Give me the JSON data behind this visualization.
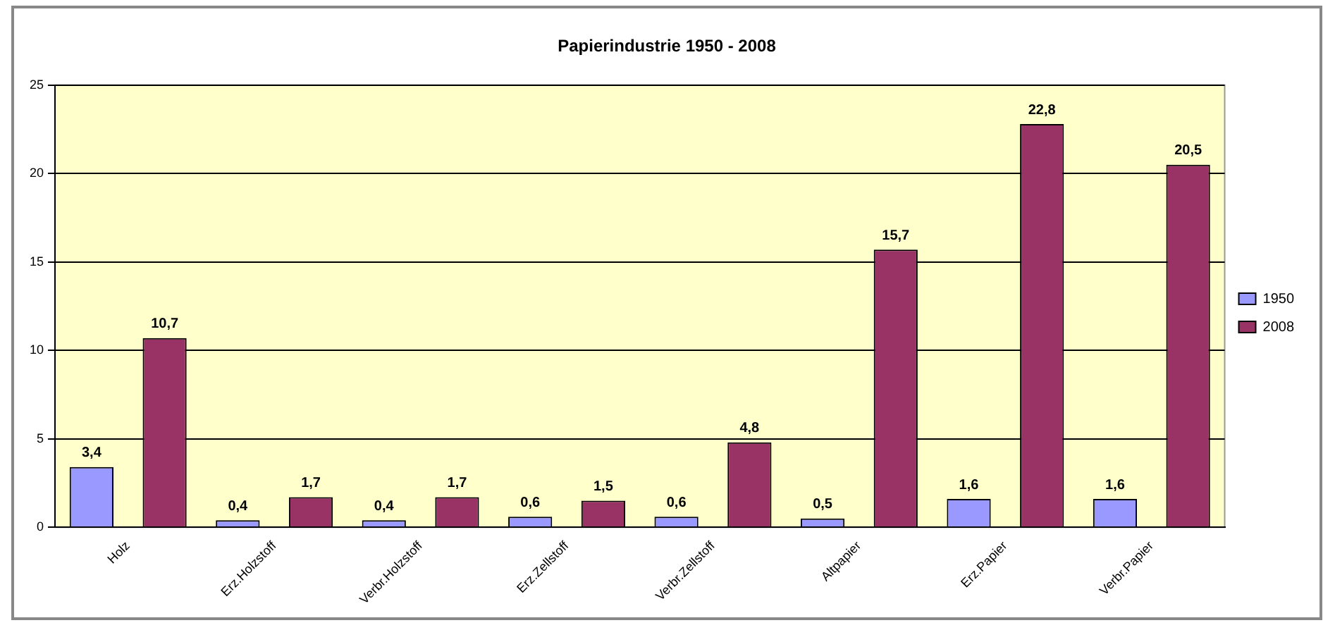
{
  "chart_data": {
    "type": "bar",
    "title": "Papierindustrie 1950 - 2008",
    "categories": [
      "Holz",
      "Erz.Holzstoff",
      "Verbr.Holzstoff",
      "Erz.Zellstoff",
      "Verbr.Zellstoff",
      "Altpapier",
      "Erz.Papier",
      "Verbr.Papier"
    ],
    "series": [
      {
        "name": "1950",
        "color": "#9999ff",
        "values": [
          3.4,
          0.4,
          0.4,
          0.6,
          0.6,
          0.5,
          1.6,
          1.6
        ],
        "value_labels": [
          "3,4",
          "0,4",
          "0,4",
          "0,6",
          "0,6",
          "0,5",
          "1,6",
          "1,6"
        ]
      },
      {
        "name": "2008",
        "color": "#993366",
        "values": [
          10.7,
          1.7,
          1.7,
          1.5,
          4.8,
          15.7,
          22.8,
          20.5
        ],
        "value_labels": [
          "10,7",
          "1,7",
          "1,7",
          "1,5",
          "4,8",
          "15,7",
          "22,8",
          "20,5"
        ]
      }
    ],
    "ylim": [
      0,
      25
    ],
    "yticks": [
      0,
      5,
      10,
      15,
      20,
      25
    ],
    "grid": "y",
    "legend": "right"
  }
}
